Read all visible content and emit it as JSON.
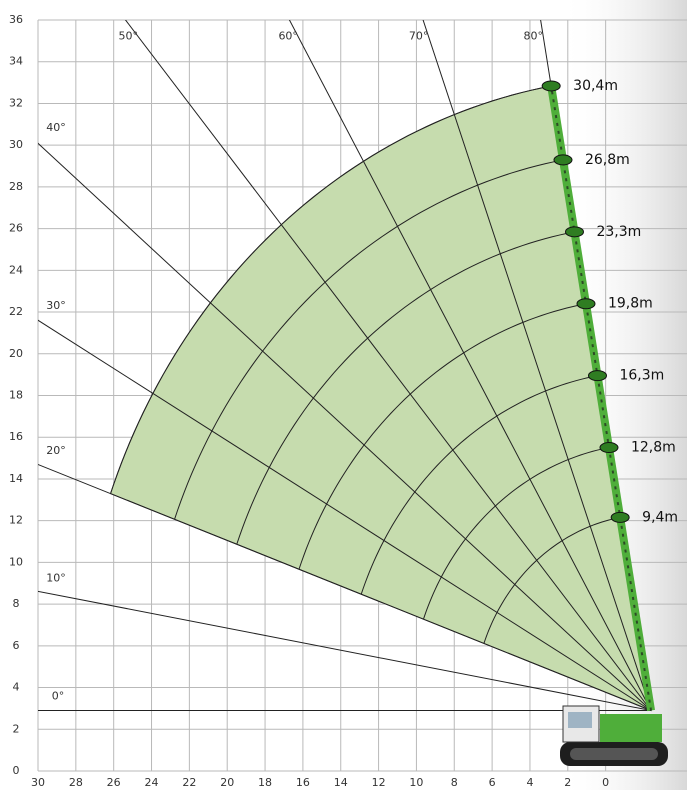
{
  "chart_data": {
    "type": "range",
    "xlim": [
      30,
      -4.3
    ],
    "ylim": [
      0,
      36
    ],
    "xticks": [
      30,
      28,
      26,
      24,
      22,
      20,
      18,
      16,
      14,
      12,
      10,
      8,
      6,
      4,
      2,
      0
    ],
    "yticks": [
      0,
      2,
      4,
      6,
      8,
      10,
      12,
      14,
      16,
      18,
      20,
      22,
      24,
      26,
      28,
      30,
      32,
      34,
      36
    ],
    "grid": true,
    "pivot": [
      -2.4,
      2.9
    ],
    "angles": [
      {
        "value": 0,
        "label": "0°"
      },
      {
        "value": 10,
        "label": "10°"
      },
      {
        "value": 20,
        "label": "20°"
      },
      {
        "value": 30,
        "label": "30°"
      },
      {
        "value": 40,
        "label": "40°"
      },
      {
        "value": 50,
        "label": "50°"
      },
      {
        "value": 60,
        "label": "60°"
      },
      {
        "value": 70,
        "label": "70°"
      },
      {
        "value": 80,
        "label": "80°"
      }
    ],
    "envelope": {
      "from_angle": 20,
      "to_angle": 80,
      "color": "#c6dcae"
    },
    "boom_lengths": {
      "values": [
        9.4,
        12.8,
        16.3,
        19.8,
        23.3,
        26.8,
        30.4
      ],
      "value_labels": [
        "9,4m",
        "12,8m",
        "16,3m",
        "19,8m",
        "23,3m",
        "26,8m",
        "30,4m"
      ]
    },
    "boom_color": "#4fae3a"
  }
}
